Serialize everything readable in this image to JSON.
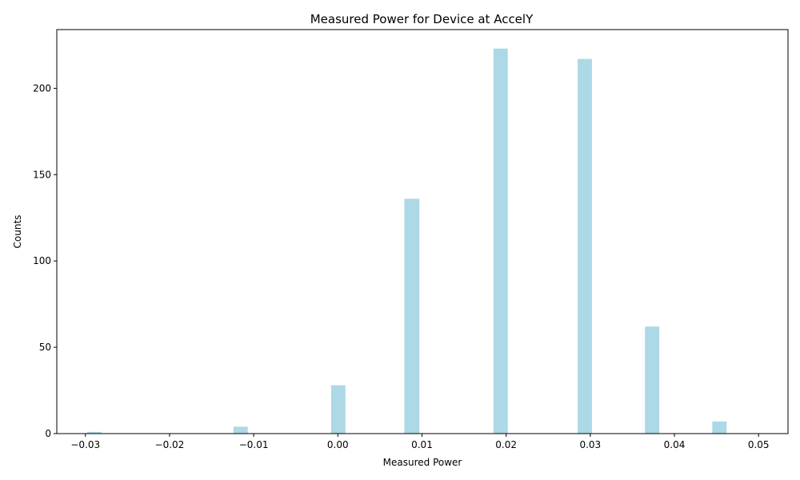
{
  "chart_data": {
    "type": "bar",
    "title": "Measured Power for Device at AccelY",
    "xlabel": "Measured Power",
    "ylabel": "Counts",
    "xlim": [
      -0.0334,
      0.0535
    ],
    "ylim": [
      0,
      234
    ],
    "x_ticks": [
      -0.03,
      -0.02,
      -0.01,
      0.0,
      0.01,
      0.02,
      0.03,
      0.04,
      0.05
    ],
    "x_tick_labels": [
      "−0.03",
      "−0.02",
      "−0.01",
      "0.00",
      "0.01",
      "0.02",
      "0.03",
      "0.04",
      "0.05"
    ],
    "y_ticks": [
      0,
      50,
      100,
      150,
      200
    ],
    "y_tick_labels": [
      "0",
      "50",
      "100",
      "150",
      "200"
    ],
    "bar_color": "#add8e6",
    "grid": false,
    "bars": [
      {
        "x_start": -0.0298,
        "x_end": -0.0281,
        "count": 1
      },
      {
        "x_start": -0.0124,
        "x_end": -0.0107,
        "count": 4
      },
      {
        "x_start": -0.0008,
        "x_end": 0.0009,
        "count": 28
      },
      {
        "x_start": 0.0079,
        "x_end": 0.0097,
        "count": 136
      },
      {
        "x_start": 0.0185,
        "x_end": 0.0202,
        "count": 223
      },
      {
        "x_start": 0.0285,
        "x_end": 0.0302,
        "count": 217
      },
      {
        "x_start": 0.0365,
        "x_end": 0.0382,
        "count": 62
      },
      {
        "x_start": 0.0445,
        "x_end": 0.0462,
        "count": 7
      }
    ]
  }
}
